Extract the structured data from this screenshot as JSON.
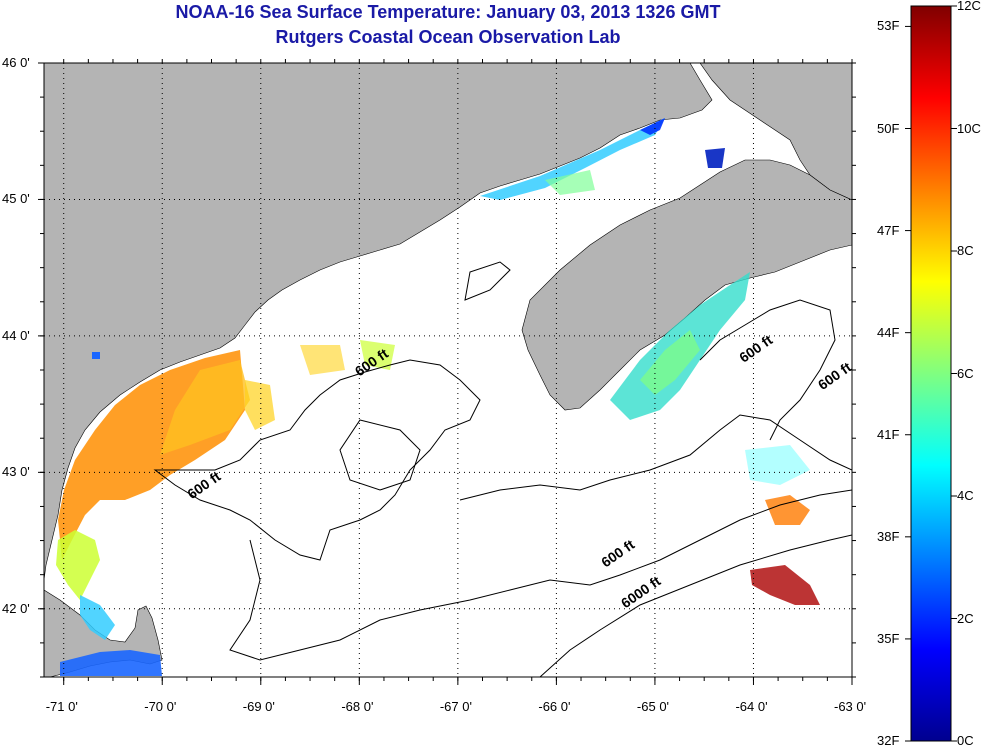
{
  "title": {
    "line1": "NOAA-16 Sea Surface Temperature:  January 03, 2013 1326 GMT",
    "line2": "Rutgers Coastal Ocean Observation Lab"
  },
  "map": {
    "lon_range": [
      -71.2,
      -63
    ],
    "lat_range": [
      41.5,
      46
    ],
    "lon_ticks": [
      {
        "value": -71,
        "label": "-71 0'"
      },
      {
        "value": -70,
        "label": "-70 0'"
      },
      {
        "value": -69,
        "label": "-69 0'"
      },
      {
        "value": -68,
        "label": "-68 0'"
      },
      {
        "value": -67,
        "label": "-67 0'"
      },
      {
        "value": -66,
        "label": "-66 0'"
      },
      {
        "value": -65,
        "label": "-65 0'"
      },
      {
        "value": -64,
        "label": "-64 0'"
      },
      {
        "value": -63,
        "label": "-63 0'"
      }
    ],
    "lat_ticks": [
      {
        "value": 46,
        "label": "46 0'"
      },
      {
        "value": 45,
        "label": "45 0'"
      },
      {
        "value": 44,
        "label": "44 0'"
      },
      {
        "value": 43,
        "label": "43 0'"
      },
      {
        "value": 42,
        "label": "42 0'"
      }
    ],
    "grid": "dotted",
    "land_color": "#b4b4b4",
    "ocean_color": "#ffffff",
    "contour_labels": [
      {
        "text": "600 ft",
        "lon": -68.0,
        "lat": 43.7
      },
      {
        "text": "600 ft",
        "lon": -69.7,
        "lat": 42.8
      },
      {
        "text": "600 ft",
        "lon": -64.1,
        "lat": 43.8
      },
      {
        "text": "600 ft",
        "lon": -63.3,
        "lat": 43.6
      },
      {
        "text": "600 ft",
        "lon": -65.5,
        "lat": 42.3
      },
      {
        "text": "6000 ft",
        "lon": -65.3,
        "lat": 42.0
      }
    ]
  },
  "colorbar": {
    "range_c": [
      0,
      12
    ],
    "colors": [
      "#00008f",
      "#0000ff",
      "#0080ff",
      "#00ffff",
      "#80ff80",
      "#ffff00",
      "#ff8000",
      "#ff0000",
      "#800000"
    ],
    "celsius_labels": [
      {
        "value": 12,
        "label": "12C"
      },
      {
        "value": 10,
        "label": "10C"
      },
      {
        "value": 8,
        "label": "8C"
      },
      {
        "value": 6,
        "label": "6C"
      },
      {
        "value": 4,
        "label": "4C"
      },
      {
        "value": 2,
        "label": "2C"
      },
      {
        "value": 0,
        "label": "0C"
      }
    ],
    "fahrenheit_labels": [
      {
        "value": 53,
        "label": "53F"
      },
      {
        "value": 50,
        "label": "50F"
      },
      {
        "value": 47,
        "label": "47F"
      },
      {
        "value": 44,
        "label": "44F"
      },
      {
        "value": 41,
        "label": "41F"
      },
      {
        "value": 38,
        "label": "38F"
      },
      {
        "value": 35,
        "label": "35F"
      },
      {
        "value": 32,
        "label": "32F"
      }
    ]
  }
}
